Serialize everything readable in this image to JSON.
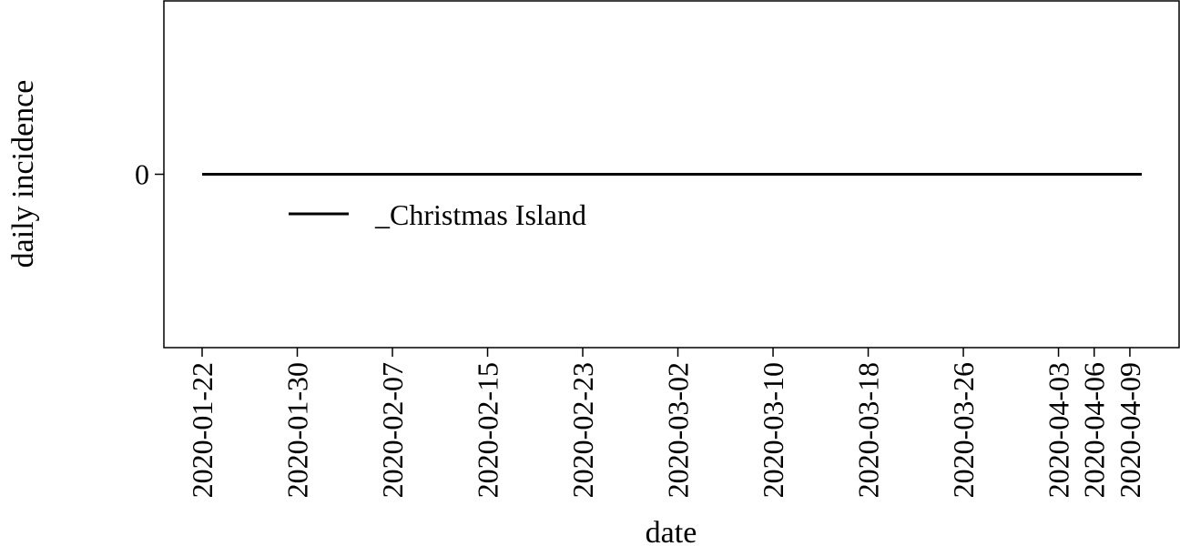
{
  "chart_data": {
    "type": "line",
    "title": "",
    "xlabel": "date",
    "ylabel": "daily incidence",
    "x_ticks": [
      "2020-01-22",
      "2020-01-30",
      "2020-02-07",
      "2020-02-15",
      "2020-02-23",
      "2020-03-02",
      "2020-03-10",
      "2020-03-18",
      "2020-03-26",
      "2020-04-03",
      "2020-04-06",
      "2020-04-09"
    ],
    "y_ticks": [
      0
    ],
    "x_range": [
      "2020-01-22",
      "2020-04-10"
    ],
    "y_range": [
      -1,
      1
    ],
    "grid": false,
    "legend_position": "center-left",
    "series": [
      {
        "name": "_Christmas Island",
        "color": "#000000",
        "x_start": "2020-01-22",
        "x_end": "2020-04-10",
        "value": 0
      }
    ]
  }
}
